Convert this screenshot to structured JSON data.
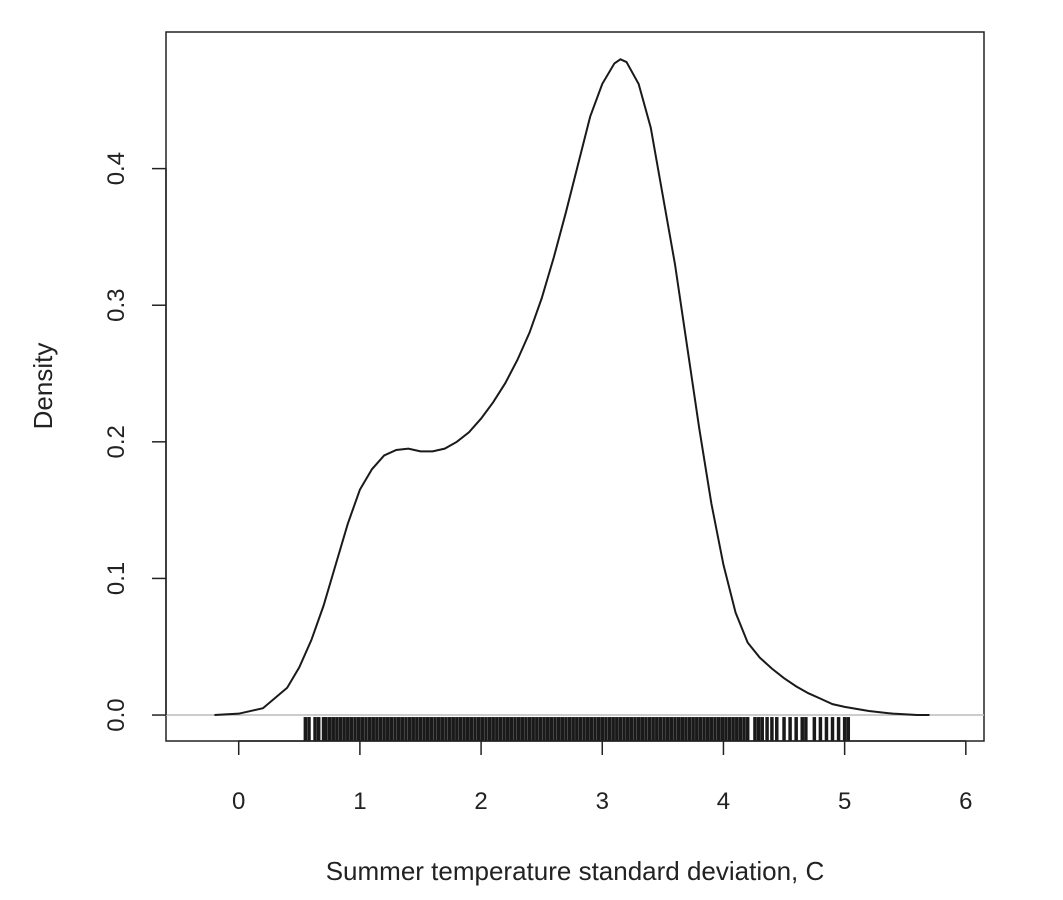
{
  "chart_data": {
    "type": "line",
    "xlabel": "Summer temperature standard deviation, C",
    "ylabel": "Density",
    "xlim": [
      -0.6,
      6.15
    ],
    "ylim": [
      -0.019,
      0.5
    ],
    "x_ticks": [
      0,
      1,
      2,
      3,
      4,
      5,
      6
    ],
    "y_ticks": [
      0.0,
      0.1,
      0.2,
      0.3,
      0.4
    ],
    "y_tick_labels": [
      "0.0",
      "0.1",
      "0.2",
      "0.3",
      "0.4"
    ],
    "grid": false,
    "baseline": 0,
    "series": [
      {
        "x": [
          -0.2,
          0.0,
          0.2,
          0.4,
          0.5,
          0.6,
          0.7,
          0.8,
          0.9,
          1.0,
          1.1,
          1.2,
          1.3,
          1.4,
          1.5,
          1.6,
          1.7,
          1.8,
          1.9,
          2.0,
          2.1,
          2.2,
          2.3,
          2.4,
          2.5,
          2.6,
          2.7,
          2.8,
          2.9,
          3.0,
          3.1,
          3.15,
          3.2,
          3.3,
          3.4,
          3.5,
          3.6,
          3.7,
          3.8,
          3.9,
          4.0,
          4.1,
          4.2,
          4.3,
          4.4,
          4.5,
          4.6,
          4.7,
          4.8,
          4.9,
          5.0,
          5.2,
          5.4,
          5.6,
          5.7
        ],
        "y": [
          0.0,
          0.001,
          0.005,
          0.02,
          0.035,
          0.055,
          0.08,
          0.11,
          0.14,
          0.165,
          0.18,
          0.19,
          0.194,
          0.195,
          0.193,
          0.193,
          0.195,
          0.2,
          0.207,
          0.217,
          0.229,
          0.243,
          0.26,
          0.28,
          0.305,
          0.335,
          0.368,
          0.403,
          0.438,
          0.462,
          0.477,
          0.48,
          0.478,
          0.462,
          0.43,
          0.38,
          0.33,
          0.27,
          0.21,
          0.155,
          0.11,
          0.075,
          0.053,
          0.042,
          0.034,
          0.027,
          0.021,
          0.016,
          0.012,
          0.008,
          0.006,
          0.003,
          0.001,
          0.0,
          0.0
        ]
      }
    ],
    "rug": [
      0.55,
      0.58,
      0.63,
      0.66,
      0.7,
      0.72,
      0.75,
      0.78,
      0.81,
      0.84,
      0.87,
      0.9,
      0.93,
      0.96,
      0.99,
      1.02,
      1.05,
      1.08,
      1.11,
      1.14,
      1.17,
      1.2,
      1.23,
      1.26,
      1.29,
      1.32,
      1.35,
      1.38,
      1.41,
      1.44,
      1.47,
      1.5,
      1.53,
      1.56,
      1.59,
      1.62,
      1.65,
      1.68,
      1.71,
      1.74,
      1.77,
      1.8,
      1.83,
      1.86,
      1.89,
      1.92,
      1.95,
      1.98,
      2.01,
      2.04,
      2.07,
      2.1,
      2.13,
      2.16,
      2.19,
      2.22,
      2.25,
      2.28,
      2.31,
      2.34,
      2.37,
      2.4,
      2.43,
      2.46,
      2.49,
      2.52,
      2.55,
      2.58,
      2.61,
      2.64,
      2.67,
      2.7,
      2.73,
      2.76,
      2.79,
      2.82,
      2.85,
      2.88,
      2.91,
      2.94,
      2.97,
      3.0,
      3.03,
      3.06,
      3.09,
      3.12,
      3.15,
      3.18,
      3.21,
      3.24,
      3.27,
      3.3,
      3.33,
      3.36,
      3.39,
      3.42,
      3.45,
      3.48,
      3.51,
      3.54,
      3.57,
      3.6,
      3.63,
      3.66,
      3.69,
      3.72,
      3.75,
      3.78,
      3.81,
      3.84,
      3.87,
      3.9,
      3.93,
      3.96,
      3.99,
      4.02,
      4.05,
      4.08,
      4.11,
      4.14,
      4.17,
      4.2,
      4.26,
      4.29,
      4.32,
      4.36,
      4.4,
      4.44,
      4.5,
      4.55,
      4.6,
      4.65,
      4.68,
      4.75,
      4.8,
      4.85,
      4.9,
      4.95,
      5.0,
      5.03
    ]
  }
}
